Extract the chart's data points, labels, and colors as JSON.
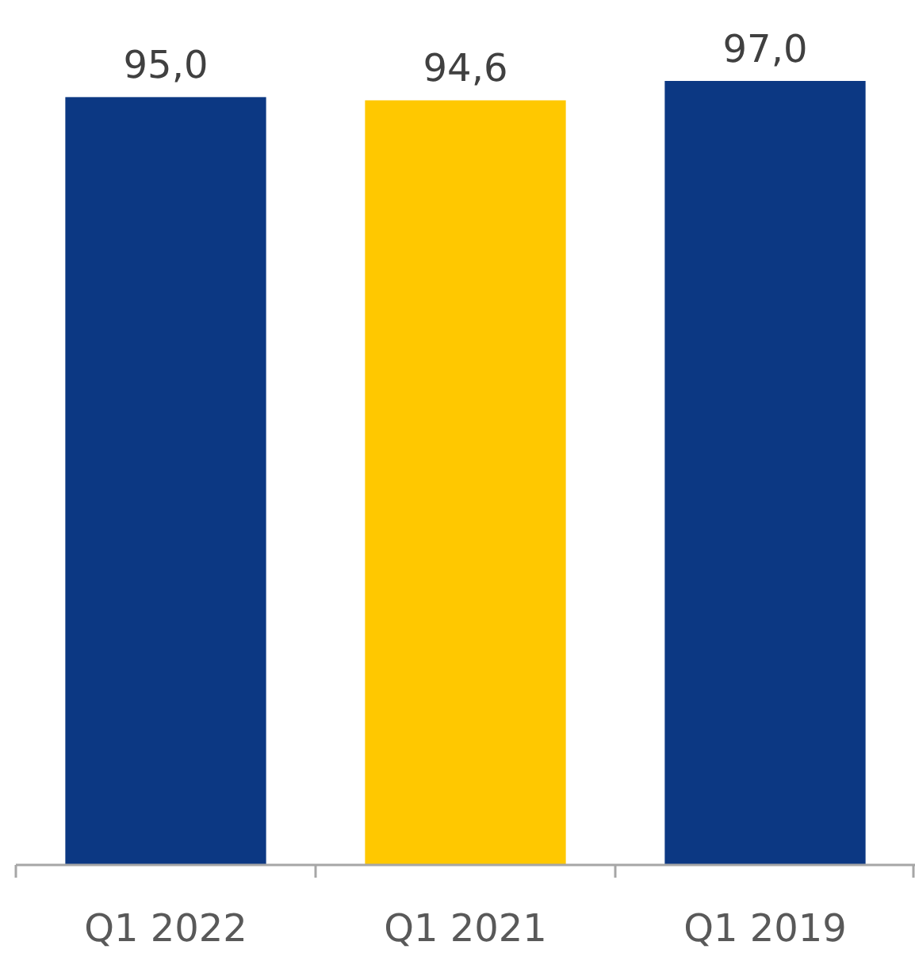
{
  "chart_data": {
    "type": "bar",
    "categories": [
      "Q1 2022",
      "Q1 2021",
      "Q1 2019"
    ],
    "values": [
      95.0,
      94.6,
      97.0
    ],
    "colors": [
      "#0c3883",
      "#ffc800",
      "#0c3883"
    ],
    "value_labels": [
      "95,0",
      "94,6",
      "97,0"
    ]
  }
}
